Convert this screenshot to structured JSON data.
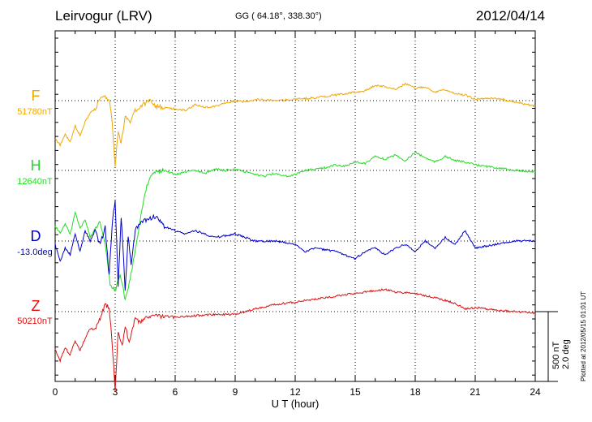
{
  "header": {
    "station": "Leirvogur (LRV)",
    "coords": "GG ( 64.18°, 338.30°)",
    "date": "2012/04/14"
  },
  "plotted_note": "Plotted at 2012/05/15 01:01  UT",
  "scale": {
    "nt": "500 nT",
    "deg": "2.0 deg"
  },
  "colors": {
    "F": "#f0a800",
    "H": "#22dd22",
    "D": "#0000cc",
    "Z": "#dd1111"
  },
  "chart_data": {
    "type": "line",
    "title": "Leirvogur (LRV)",
    "xlabel": "U T (hour)",
    "ylabel": "",
    "xlim": [
      0,
      24
    ],
    "x_ticks": [
      0,
      3,
      6,
      9,
      12,
      15,
      18,
      21,
      24
    ],
    "grid": true,
    "panels": [
      {
        "name": "F",
        "baseline": "51780nT",
        "x": [
          0,
          0.25,
          0.5,
          0.75,
          1,
          1.25,
          1.5,
          1.75,
          2,
          2.25,
          2.5,
          2.75,
          2.85,
          3,
          3.15,
          3.3,
          3.5,
          3.75,
          4,
          4.25,
          4.5,
          4.75,
          5,
          5.5,
          6,
          6.5,
          7,
          7.5,
          8,
          8.5,
          9,
          9.5,
          10,
          11,
          12,
          13,
          14,
          15,
          15.5,
          16,
          16.5,
          17,
          17.5,
          18,
          18.5,
          19,
          19.5,
          20,
          20.5,
          21,
          22,
          23,
          24
        ],
        "values": [
          -270,
          -320,
          -240,
          -300,
          -180,
          -250,
          -150,
          -90,
          -60,
          10,
          30,
          -20,
          -160,
          -460,
          -230,
          -300,
          -110,
          -150,
          -70,
          -40,
          -20,
          0,
          -40,
          -50,
          -60,
          -70,
          -30,
          -50,
          -40,
          -20,
          0,
          -10,
          10,
          0,
          10,
          20,
          40,
          60,
          70,
          110,
          100,
          80,
          120,
          90,
          100,
          60,
          80,
          50,
          40,
          10,
          20,
          -10,
          -40
        ]
      },
      {
        "name": "H",
        "baseline": "12640nT",
        "x": [
          0,
          0.25,
          0.5,
          0.75,
          1,
          1.25,
          1.5,
          1.75,
          2,
          2.25,
          2.5,
          2.75,
          3,
          3.25,
          3.5,
          3.75,
          4,
          4.25,
          4.5,
          4.75,
          5,
          5.5,
          6,
          6.5,
          7,
          7.5,
          8,
          8.5,
          9,
          9.5,
          10,
          10.5,
          11,
          11.5,
          12,
          12.5,
          13,
          13.5,
          14,
          14.5,
          15,
          15.5,
          16,
          16.5,
          17,
          17.5,
          18,
          18.5,
          19,
          19.5,
          20,
          20.5,
          21,
          22,
          23,
          24
        ],
        "values": [
          -400,
          -450,
          -380,
          -460,
          -300,
          -420,
          -350,
          -480,
          -420,
          -370,
          -530,
          -820,
          -860,
          -750,
          -920,
          -780,
          -580,
          -350,
          -150,
          -40,
          -10,
          0,
          -30,
          -10,
          0,
          -20,
          10,
          0,
          10,
          -10,
          -30,
          -40,
          -20,
          -40,
          -30,
          0,
          10,
          20,
          40,
          30,
          60,
          50,
          100,
          80,
          110,
          70,
          130,
          90,
          60,
          100,
          70,
          60,
          40,
          20,
          0,
          -10
        ]
      },
      {
        "name": "D",
        "baseline": "-13.0deg",
        "x": [
          0,
          0.25,
          0.5,
          0.75,
          1,
          1.25,
          1.5,
          1.75,
          2,
          2.25,
          2.5,
          2.7,
          2.85,
          3,
          3.15,
          3.3,
          3.5,
          3.65,
          3.8,
          4,
          4.25,
          4.5,
          5,
          5.5,
          6,
          6.5,
          7,
          8,
          9,
          9.5,
          10,
          11,
          12,
          12.5,
          13,
          14,
          15,
          15.5,
          16,
          16.5,
          17,
          17.5,
          18,
          18.5,
          19,
          19.5,
          20,
          20.5,
          21,
          22,
          23,
          24
        ],
        "values": [
          -0.1,
          -0.6,
          -0.2,
          -0.4,
          0.2,
          -0.3,
          0.3,
          0.0,
          0.3,
          -0.1,
          0.4,
          -1.0,
          0.5,
          1.2,
          -1.3,
          0.7,
          -1.4,
          0.1,
          -0.7,
          0.3,
          0.5,
          0.6,
          0.7,
          0.4,
          0.3,
          0.2,
          0.3,
          0.1,
          0.2,
          0.1,
          0.0,
          0.0,
          -0.1,
          -0.3,
          -0.2,
          -0.3,
          -0.5,
          -0.3,
          -0.2,
          -0.4,
          -0.2,
          -0.1,
          -0.3,
          0.0,
          -0.2,
          0.1,
          -0.1,
          0.3,
          -0.2,
          -0.1,
          0.0,
          0.0
        ]
      },
      {
        "name": "Z",
        "baseline": "50210nT",
        "x": [
          0,
          0.25,
          0.5,
          0.75,
          1,
          1.25,
          1.5,
          1.75,
          2,
          2.25,
          2.5,
          2.7,
          2.85,
          3,
          3.15,
          3.35,
          3.5,
          3.7,
          4,
          4.25,
          4.5,
          5,
          6,
          7,
          8,
          9,
          10,
          11,
          12,
          13,
          14,
          15,
          16,
          16.5,
          17,
          18,
          19,
          20,
          20.5,
          21,
          22,
          23,
          24
        ],
        "values": [
          -270,
          -350,
          -260,
          -310,
          -210,
          -280,
          -190,
          -120,
          -130,
          -50,
          50,
          30,
          -220,
          -560,
          -140,
          -250,
          -100,
          -220,
          -50,
          -80,
          -40,
          -30,
          -40,
          -30,
          -20,
          -20,
          20,
          50,
          70,
          90,
          110,
          130,
          150,
          160,
          140,
          130,
          100,
          60,
          20,
          30,
          10,
          0,
          -10
        ]
      }
    ]
  }
}
